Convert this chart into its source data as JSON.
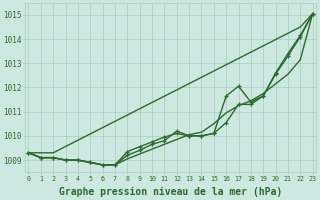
{
  "background_color": "#cce8e0",
  "grid_color": "#aaccbb",
  "line_color": "#2d6a2d",
  "xlabel": "Graphe pression niveau de la mer (hPa)",
  "xlabel_fontsize": 7,
  "ylim": [
    1008.5,
    1015.5
  ],
  "xlim": [
    -0.3,
    23.3
  ],
  "yticks": [
    1009,
    1010,
    1011,
    1012,
    1013,
    1014,
    1015
  ],
  "xticks": [
    0,
    1,
    2,
    3,
    4,
    5,
    6,
    7,
    8,
    9,
    10,
    11,
    12,
    13,
    14,
    15,
    16,
    17,
    18,
    19,
    20,
    21,
    22,
    23
  ],
  "series": [
    {
      "y": [
        1009.3,
        1009.1,
        1009.1,
        1009.0,
        1009.0,
        1008.9,
        1008.8,
        1008.8,
        1009.2,
        1009.4,
        1009.65,
        1009.8,
        1010.2,
        1010.0,
        1010.0,
        1010.1,
        1010.55,
        1011.3,
        1011.3,
        1011.65,
        1012.55,
        1013.3,
        1014.1,
        1015.05
      ],
      "has_markers": true,
      "linewidth": 1.0
    },
    {
      "y": [
        1009.3,
        1009.1,
        1009.1,
        1009.0,
        1009.0,
        1008.9,
        1008.8,
        1008.8,
        1009.05,
        1009.25,
        1009.45,
        1009.65,
        1009.85,
        1010.05,
        1010.15,
        1010.5,
        1010.95,
        1011.25,
        1011.45,
        1011.75,
        1012.15,
        1012.55,
        1013.15,
        1015.05
      ],
      "has_markers": false,
      "linewidth": 1.0
    },
    {
      "y": [
        1009.3,
        1009.1,
        1009.1,
        1009.0,
        1009.0,
        1008.9,
        1008.8,
        1008.8,
        1009.35,
        1009.55,
        1009.75,
        1009.95,
        1010.1,
        1010.0,
        1010.0,
        1010.1,
        1011.65,
        1012.05,
        1011.4,
        1011.65,
        1012.6,
        1013.4,
        1014.15,
        1015.05
      ],
      "has_markers": true,
      "linewidth": 1.0
    },
    {
      "y": [
        1009.3,
        1009.3,
        1009.82,
        1010.34,
        1010.86,
        1011.38,
        1011.9,
        1012.42,
        1012.94,
        1013.46,
        1013.98,
        1014.5,
        1015.05
      ],
      "x": [
        0,
        2,
        4,
        6,
        8,
        10,
        12,
        14,
        16,
        18,
        20,
        22,
        23
      ],
      "has_markers": false,
      "linewidth": 1.0,
      "straight": true
    }
  ]
}
